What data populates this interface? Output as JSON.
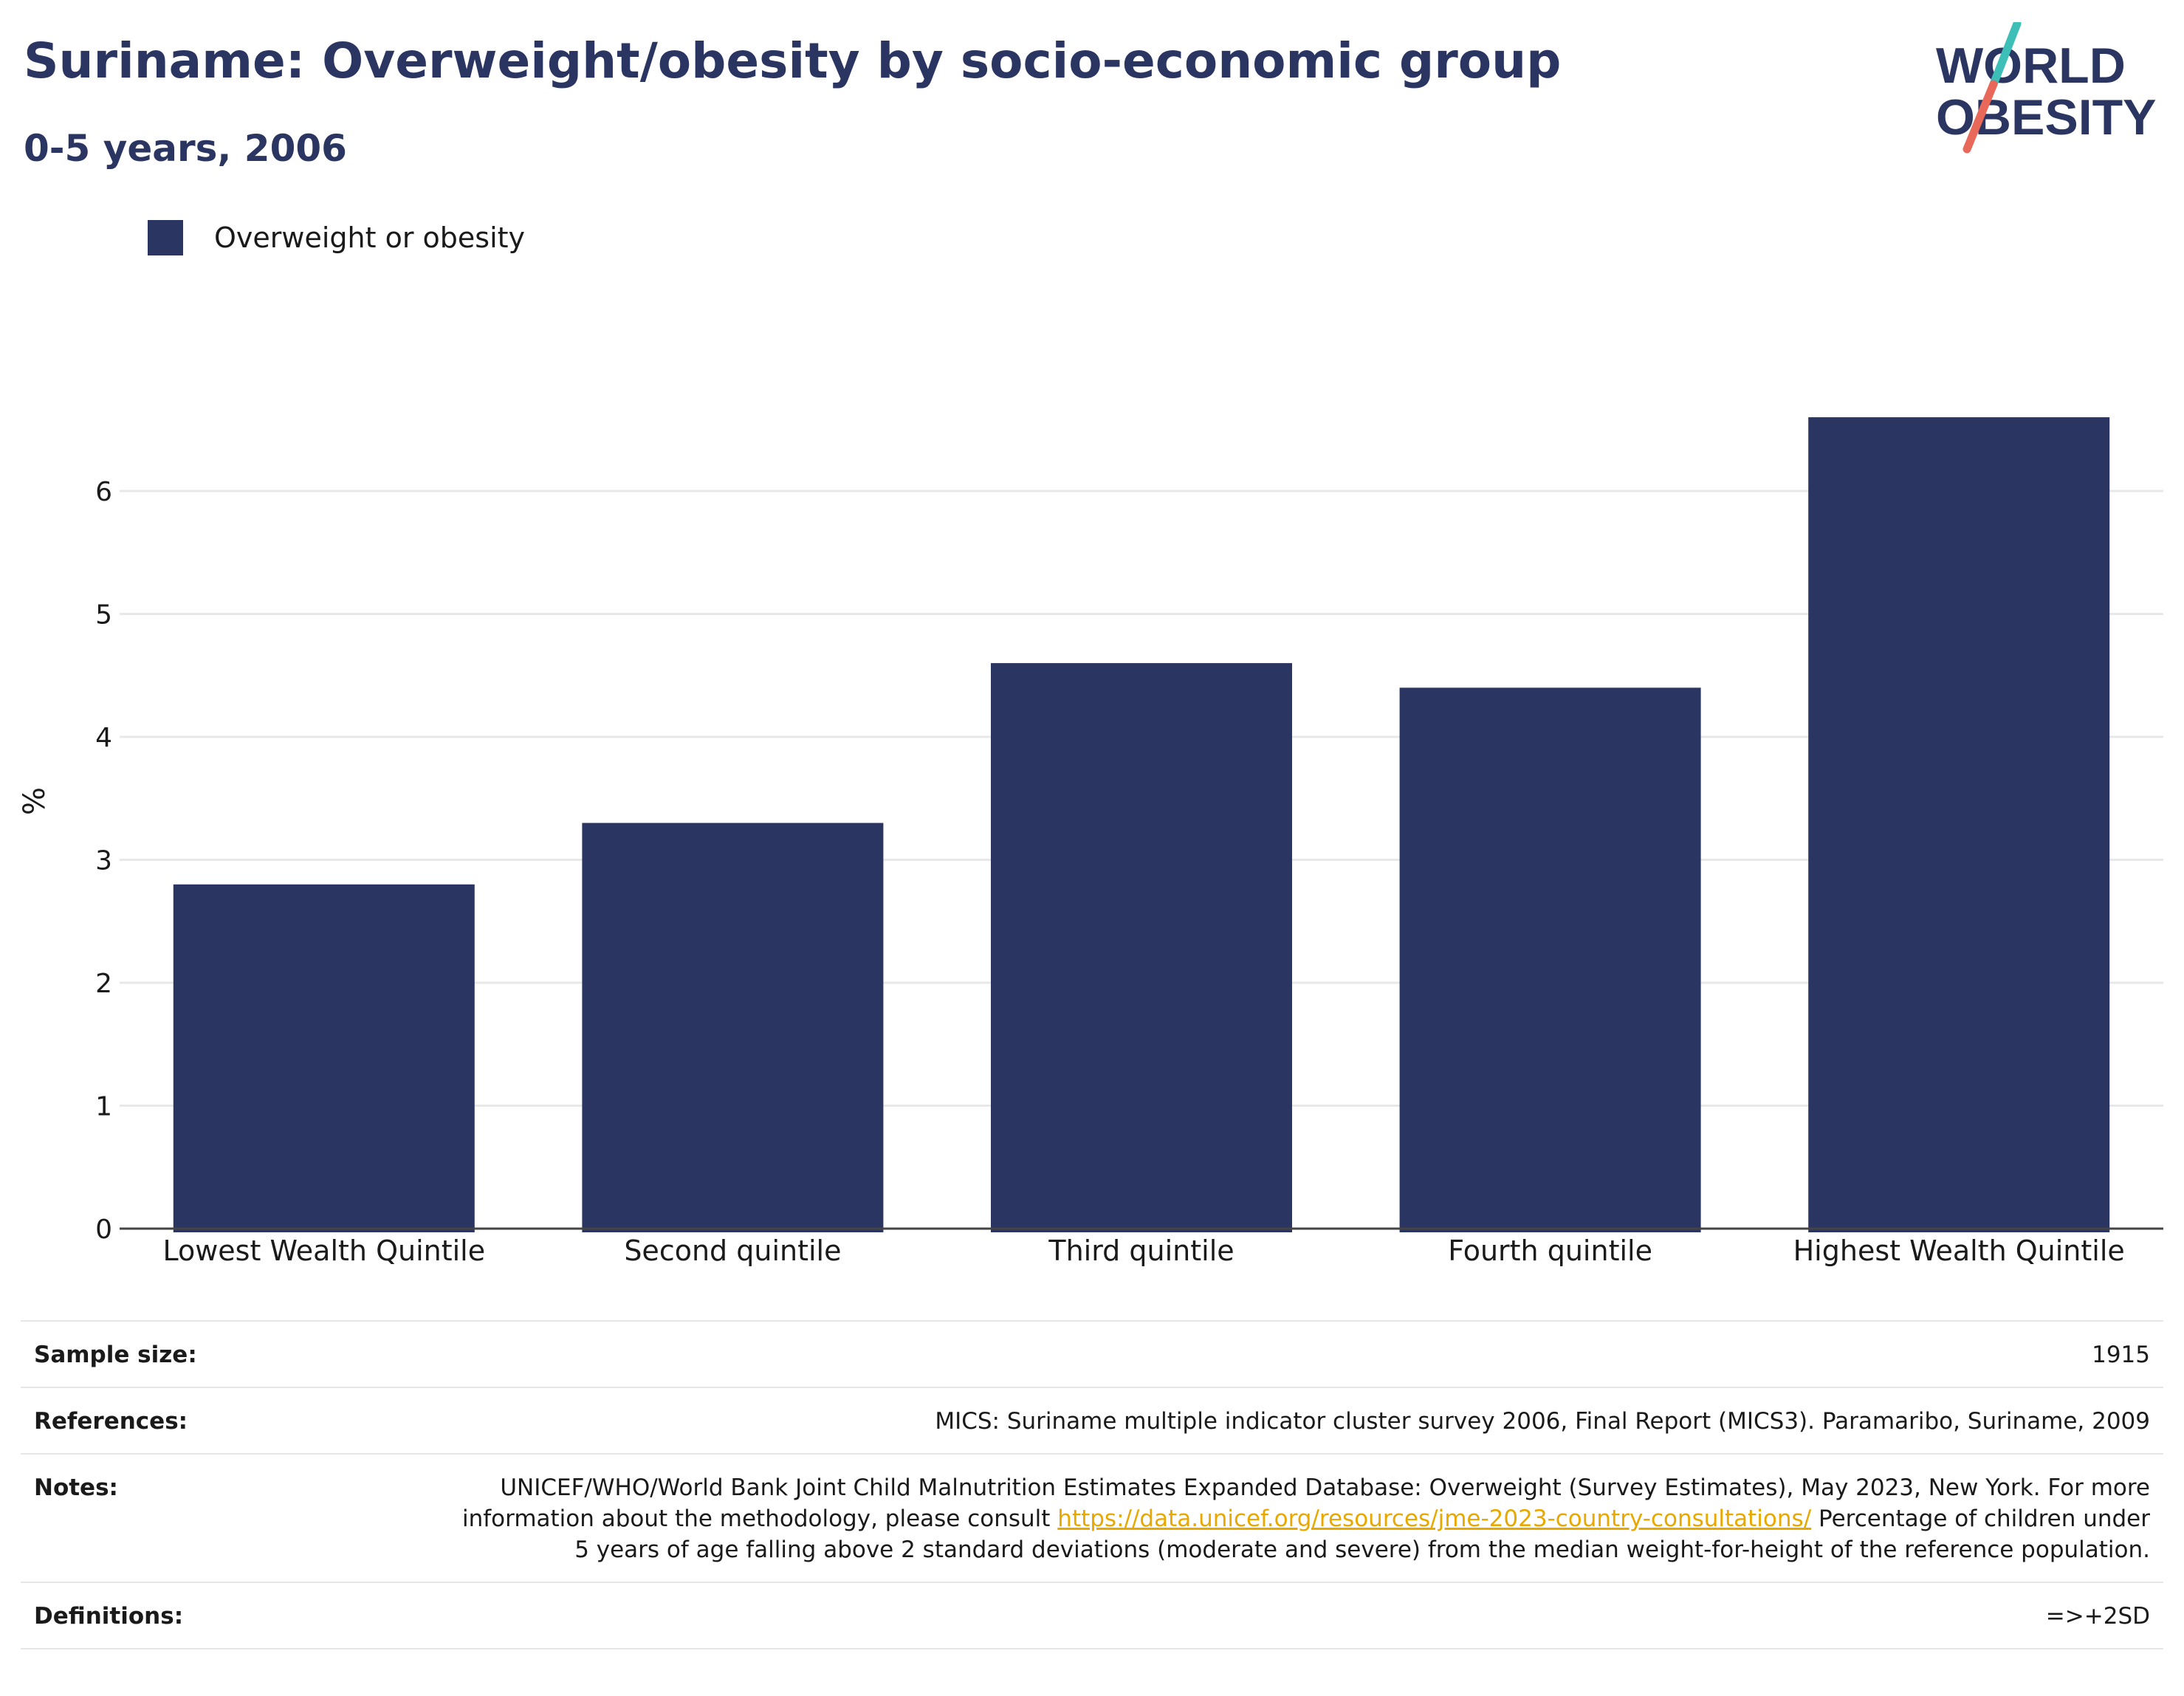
{
  "header": {
    "title": "Suriname: Overweight/obesity by socio-economic group",
    "subtitle": "0-5 years, 2006"
  },
  "logo": {
    "line1": "WORLD",
    "line2": "OBESITY",
    "colors": {
      "text": "#2a3561",
      "slash_top": "#3dbfb8",
      "slash_bottom": "#e8685a"
    }
  },
  "legend": {
    "label": "Overweight or obesity",
    "color": "#2a3561"
  },
  "chart_data": {
    "type": "bar",
    "categories": [
      "Lowest Wealth Quintile",
      "Second quintile",
      "Third quintile",
      "Fourth quintile",
      "Highest Wealth Quintile"
    ],
    "series": [
      {
        "name": "Overweight or obesity",
        "values": [
          2.8,
          3.3,
          4.6,
          4.4,
          6.6
        ],
        "color": "#2a3561"
      }
    ],
    "ylabel": "%",
    "yticks": [
      0,
      1,
      2,
      3,
      4,
      5,
      6
    ],
    "ylim": [
      0,
      7.1
    ],
    "grid": true,
    "legend_position": "top-left"
  },
  "info": {
    "sample_size": {
      "label": "Sample size:",
      "value": "1915"
    },
    "references": {
      "label": "References:",
      "value": "MICS: Suriname multiple indicator cluster survey 2006, Final Report (MICS3). Paramaribo, Suriname, 2009"
    },
    "notes": {
      "label": "Notes:",
      "text_before": "UNICEF/WHO/World Bank Joint Child Malnutrition Estimates Expanded Database: Overweight (Survey Estimates), May 2023, New York. For more information about the methodology, please consult ",
      "link": "https://data.unicef.org/resources/jme-2023-country-consultations/",
      "text_after": " Percentage of children under 5 years of age falling above 2 standard deviations (moderate and severe) from the median weight-for-height of the reference population."
    },
    "definitions": {
      "label": "Definitions:",
      "value": "=>+2SD"
    }
  }
}
